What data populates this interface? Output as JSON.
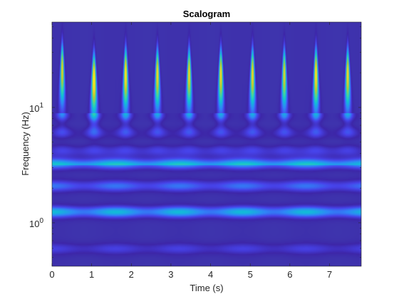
{
  "chart_data": {
    "type": "heatmap",
    "title": "Scalogram",
    "xlabel": "Time (s)",
    "ylabel": "Frequency (Hz)",
    "xlim": [
      0,
      7.8
    ],
    "ylim": [
      0.42,
      55
    ],
    "yscale": "log",
    "x_ticks": [
      0,
      1,
      2,
      3,
      4,
      5,
      6,
      7
    ],
    "y_ticks": [
      {
        "value": 1,
        "base": "10",
        "exp": "0"
      },
      {
        "value": 10,
        "base": "10",
        "exp": "1"
      }
    ],
    "colormap": [
      "#3d26a8",
      "#4743ea",
      "#2f86f7",
      "#10bfd6",
      "#49d49a",
      "#b8c832",
      "#f5da28",
      "#f9fb15"
    ],
    "background_color": "#3e3bb0",
    "bursts": [
      {
        "time": 0.25,
        "peak_frequency": 22,
        "intensity": 0.85
      },
      {
        "time": 1.05,
        "peak_frequency": 18,
        "intensity": 1.0
      },
      {
        "time": 1.85,
        "peak_frequency": 20,
        "intensity": 0.95
      },
      {
        "time": 2.65,
        "peak_frequency": 20,
        "intensity": 0.9
      },
      {
        "time": 3.45,
        "peak_frequency": 20,
        "intensity": 0.88
      },
      {
        "time": 4.25,
        "peak_frequency": 20,
        "intensity": 0.9
      },
      {
        "time": 5.05,
        "peak_frequency": 20,
        "intensity": 0.88
      },
      {
        "time": 5.85,
        "peak_frequency": 20,
        "intensity": 0.85
      },
      {
        "time": 6.65,
        "peak_frequency": 20,
        "intensity": 0.95
      },
      {
        "time": 7.45,
        "peak_frequency": 20,
        "intensity": 0.9
      }
    ],
    "low_frequency_bands": [
      {
        "frequency": 3.3,
        "intensity": 0.42
      },
      {
        "frequency": 2.1,
        "intensity": 0.3
      },
      {
        "frequency": 1.25,
        "intensity": 0.46
      },
      {
        "frequency": 0.6,
        "intensity": 0.18
      }
    ]
  }
}
